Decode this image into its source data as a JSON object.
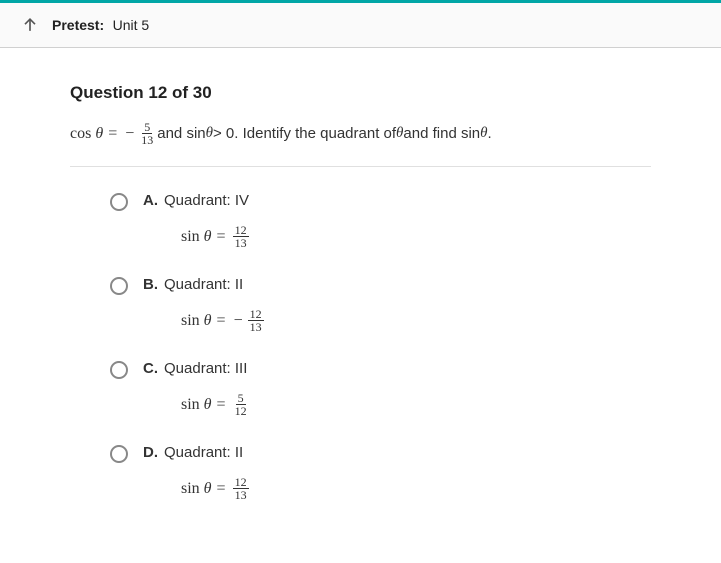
{
  "colors": {
    "accent": "#00a6a6",
    "border": "#d0d0d0",
    "text": "#222",
    "radio_border": "#888"
  },
  "header": {
    "back_icon": "back-arrow",
    "label": "Pretest:",
    "unit": "Unit 5"
  },
  "question": {
    "title": "Question 12 of 30",
    "prompt_prefix": "cos",
    "prompt_theta": "θ",
    "prompt_equals": "=",
    "prompt_minus": "−",
    "given_frac_num": "5",
    "given_frac_den": "13",
    "prompt_mid": " and sin ",
    "prompt_cond": " > 0. Identify the quadrant of ",
    "prompt_end": " and find sin ",
    "prompt_period": "."
  },
  "options": [
    {
      "letter": "A.",
      "text": "Quadrant: IV",
      "sin_label": "sin",
      "has_minus": false,
      "num": "12",
      "den": "13"
    },
    {
      "letter": "B.",
      "text": "Quadrant: II",
      "sin_label": "sin",
      "has_minus": true,
      "num": "12",
      "den": "13"
    },
    {
      "letter": "C.",
      "text": "Quadrant: III",
      "sin_label": "sin",
      "has_minus": false,
      "num": "5",
      "den": "12"
    },
    {
      "letter": "D.",
      "text": "Quadrant: II",
      "sin_label": "sin",
      "has_minus": false,
      "num": "12",
      "den": "13"
    }
  ]
}
